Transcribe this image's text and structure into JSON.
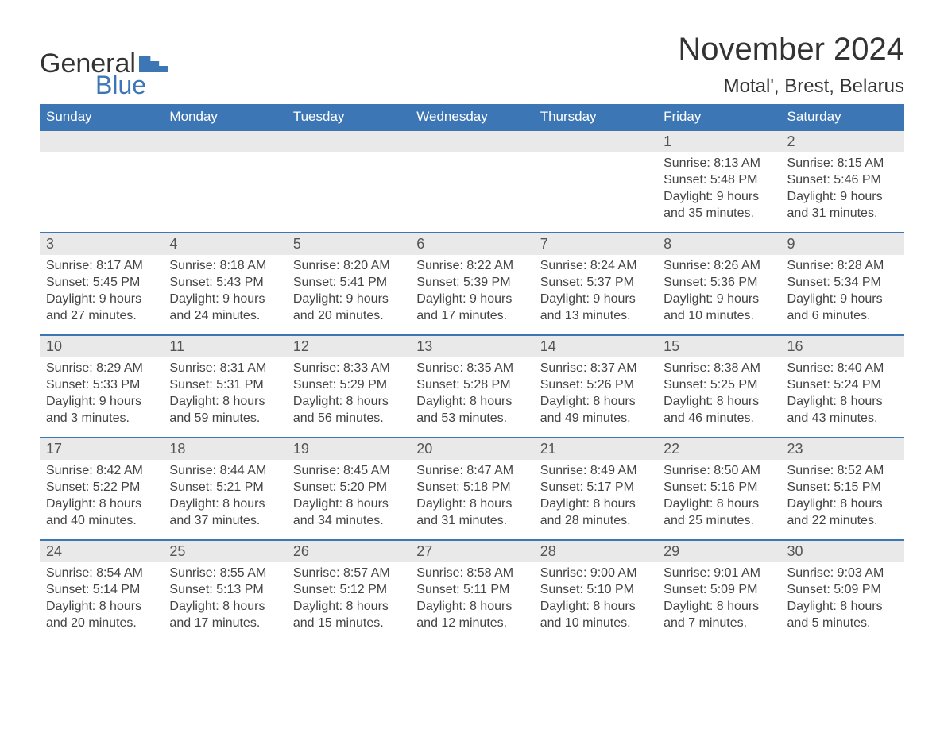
{
  "logo": {
    "text1": "General",
    "text2": "Blue"
  },
  "title": "November 2024",
  "location": "Motal', Brest, Belarus",
  "colors": {
    "header_bg": "#3c76b5",
    "header_text": "#ffffff",
    "daynum_bg": "#e9e9e9",
    "border": "#3c76b5",
    "body_text": "#444444",
    "title_text": "#333333"
  },
  "weekdays": [
    "Sunday",
    "Monday",
    "Tuesday",
    "Wednesday",
    "Thursday",
    "Friday",
    "Saturday"
  ],
  "weeks": [
    [
      null,
      null,
      null,
      null,
      null,
      {
        "n": "1",
        "sr": "Sunrise: 8:13 AM",
        "ss": "Sunset: 5:48 PM",
        "d1": "Daylight: 9 hours",
        "d2": "and 35 minutes."
      },
      {
        "n": "2",
        "sr": "Sunrise: 8:15 AM",
        "ss": "Sunset: 5:46 PM",
        "d1": "Daylight: 9 hours",
        "d2": "and 31 minutes."
      }
    ],
    [
      {
        "n": "3",
        "sr": "Sunrise: 8:17 AM",
        "ss": "Sunset: 5:45 PM",
        "d1": "Daylight: 9 hours",
        "d2": "and 27 minutes."
      },
      {
        "n": "4",
        "sr": "Sunrise: 8:18 AM",
        "ss": "Sunset: 5:43 PM",
        "d1": "Daylight: 9 hours",
        "d2": "and 24 minutes."
      },
      {
        "n": "5",
        "sr": "Sunrise: 8:20 AM",
        "ss": "Sunset: 5:41 PM",
        "d1": "Daylight: 9 hours",
        "d2": "and 20 minutes."
      },
      {
        "n": "6",
        "sr": "Sunrise: 8:22 AM",
        "ss": "Sunset: 5:39 PM",
        "d1": "Daylight: 9 hours",
        "d2": "and 17 minutes."
      },
      {
        "n": "7",
        "sr": "Sunrise: 8:24 AM",
        "ss": "Sunset: 5:37 PM",
        "d1": "Daylight: 9 hours",
        "d2": "and 13 minutes."
      },
      {
        "n": "8",
        "sr": "Sunrise: 8:26 AM",
        "ss": "Sunset: 5:36 PM",
        "d1": "Daylight: 9 hours",
        "d2": "and 10 minutes."
      },
      {
        "n": "9",
        "sr": "Sunrise: 8:28 AM",
        "ss": "Sunset: 5:34 PM",
        "d1": "Daylight: 9 hours",
        "d2": "and 6 minutes."
      }
    ],
    [
      {
        "n": "10",
        "sr": "Sunrise: 8:29 AM",
        "ss": "Sunset: 5:33 PM",
        "d1": "Daylight: 9 hours",
        "d2": "and 3 minutes."
      },
      {
        "n": "11",
        "sr": "Sunrise: 8:31 AM",
        "ss": "Sunset: 5:31 PM",
        "d1": "Daylight: 8 hours",
        "d2": "and 59 minutes."
      },
      {
        "n": "12",
        "sr": "Sunrise: 8:33 AM",
        "ss": "Sunset: 5:29 PM",
        "d1": "Daylight: 8 hours",
        "d2": "and 56 minutes."
      },
      {
        "n": "13",
        "sr": "Sunrise: 8:35 AM",
        "ss": "Sunset: 5:28 PM",
        "d1": "Daylight: 8 hours",
        "d2": "and 53 minutes."
      },
      {
        "n": "14",
        "sr": "Sunrise: 8:37 AM",
        "ss": "Sunset: 5:26 PM",
        "d1": "Daylight: 8 hours",
        "d2": "and 49 minutes."
      },
      {
        "n": "15",
        "sr": "Sunrise: 8:38 AM",
        "ss": "Sunset: 5:25 PM",
        "d1": "Daylight: 8 hours",
        "d2": "and 46 minutes."
      },
      {
        "n": "16",
        "sr": "Sunrise: 8:40 AM",
        "ss": "Sunset: 5:24 PM",
        "d1": "Daylight: 8 hours",
        "d2": "and 43 minutes."
      }
    ],
    [
      {
        "n": "17",
        "sr": "Sunrise: 8:42 AM",
        "ss": "Sunset: 5:22 PM",
        "d1": "Daylight: 8 hours",
        "d2": "and 40 minutes."
      },
      {
        "n": "18",
        "sr": "Sunrise: 8:44 AM",
        "ss": "Sunset: 5:21 PM",
        "d1": "Daylight: 8 hours",
        "d2": "and 37 minutes."
      },
      {
        "n": "19",
        "sr": "Sunrise: 8:45 AM",
        "ss": "Sunset: 5:20 PM",
        "d1": "Daylight: 8 hours",
        "d2": "and 34 minutes."
      },
      {
        "n": "20",
        "sr": "Sunrise: 8:47 AM",
        "ss": "Sunset: 5:18 PM",
        "d1": "Daylight: 8 hours",
        "d2": "and 31 minutes."
      },
      {
        "n": "21",
        "sr": "Sunrise: 8:49 AM",
        "ss": "Sunset: 5:17 PM",
        "d1": "Daylight: 8 hours",
        "d2": "and 28 minutes."
      },
      {
        "n": "22",
        "sr": "Sunrise: 8:50 AM",
        "ss": "Sunset: 5:16 PM",
        "d1": "Daylight: 8 hours",
        "d2": "and 25 minutes."
      },
      {
        "n": "23",
        "sr": "Sunrise: 8:52 AM",
        "ss": "Sunset: 5:15 PM",
        "d1": "Daylight: 8 hours",
        "d2": "and 22 minutes."
      }
    ],
    [
      {
        "n": "24",
        "sr": "Sunrise: 8:54 AM",
        "ss": "Sunset: 5:14 PM",
        "d1": "Daylight: 8 hours",
        "d2": "and 20 minutes."
      },
      {
        "n": "25",
        "sr": "Sunrise: 8:55 AM",
        "ss": "Sunset: 5:13 PM",
        "d1": "Daylight: 8 hours",
        "d2": "and 17 minutes."
      },
      {
        "n": "26",
        "sr": "Sunrise: 8:57 AM",
        "ss": "Sunset: 5:12 PM",
        "d1": "Daylight: 8 hours",
        "d2": "and 15 minutes."
      },
      {
        "n": "27",
        "sr": "Sunrise: 8:58 AM",
        "ss": "Sunset: 5:11 PM",
        "d1": "Daylight: 8 hours",
        "d2": "and 12 minutes."
      },
      {
        "n": "28",
        "sr": "Sunrise: 9:00 AM",
        "ss": "Sunset: 5:10 PM",
        "d1": "Daylight: 8 hours",
        "d2": "and 10 minutes."
      },
      {
        "n": "29",
        "sr": "Sunrise: 9:01 AM",
        "ss": "Sunset: 5:09 PM",
        "d1": "Daylight: 8 hours",
        "d2": "and 7 minutes."
      },
      {
        "n": "30",
        "sr": "Sunrise: 9:03 AM",
        "ss": "Sunset: 5:09 PM",
        "d1": "Daylight: 8 hours",
        "d2": "and 5 minutes."
      }
    ]
  ]
}
